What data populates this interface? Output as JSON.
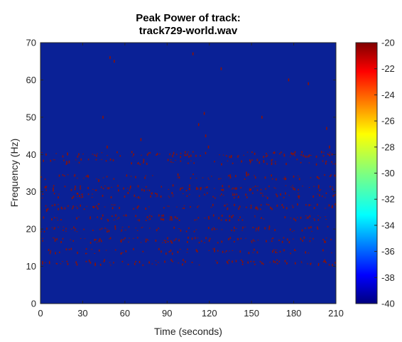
{
  "chart_data": {
    "type": "heatmap",
    "title_lines": [
      "Peak Power of track:",
      "track729-world.wav"
    ],
    "xlabel": "Time (seconds)",
    "ylabel": "Frequency (Hz)",
    "xlim": [
      0,
      210
    ],
    "ylim": [
      0,
      70
    ],
    "xticks": [
      "0",
      "30",
      "60",
      "90",
      "120",
      "150",
      "180",
      "210"
    ],
    "yticks": [
      "0",
      "10",
      "20",
      "30",
      "40",
      "50",
      "60",
      "70"
    ],
    "colorbar": {
      "min": -40,
      "max": -20,
      "ticks": [
        "-20",
        "-22",
        "-24",
        "-26",
        "-28",
        "-30",
        "-32",
        "-34",
        "-36",
        "-38",
        "-40"
      ],
      "colormap": "jet"
    },
    "background_value": -40,
    "peak_value": -20,
    "peak_bands_hz": [
      11,
      14,
      17,
      20,
      23,
      26,
      29,
      31,
      34,
      38,
      40
    ],
    "sparse_peaks": [
      {
        "time": 6,
        "freq": 11
      },
      {
        "time": 4,
        "freq": 25
      },
      {
        "time": 10,
        "freq": 17
      },
      {
        "time": 20,
        "freq": 38
      },
      {
        "time": 35,
        "freq": 23
      },
      {
        "time": 41,
        "freq": 33
      },
      {
        "time": 44,
        "freq": 50
      },
      {
        "time": 47,
        "freq": 42
      },
      {
        "time": 49,
        "freq": 66
      },
      {
        "time": 52,
        "freq": 65
      },
      {
        "time": 71,
        "freq": 44
      },
      {
        "time": 108,
        "freq": 67
      },
      {
        "time": 112,
        "freq": 48
      },
      {
        "time": 116,
        "freq": 51
      },
      {
        "time": 117,
        "freq": 45
      },
      {
        "time": 119,
        "freq": 42
      },
      {
        "time": 128,
        "freq": 63
      },
      {
        "time": 146,
        "freq": 35
      },
      {
        "time": 157,
        "freq": 50
      },
      {
        "time": 176,
        "freq": 60
      },
      {
        "time": 190,
        "freq": 59
      },
      {
        "time": 203,
        "freq": 47
      },
      {
        "time": 205,
        "freq": 42
      },
      {
        "time": 207,
        "freq": 26
      }
    ],
    "grid": false
  },
  "colors": {
    "background_dark_blue": "#0a2196",
    "peak_dark_red": "#8a1208",
    "axis": "#262626"
  }
}
